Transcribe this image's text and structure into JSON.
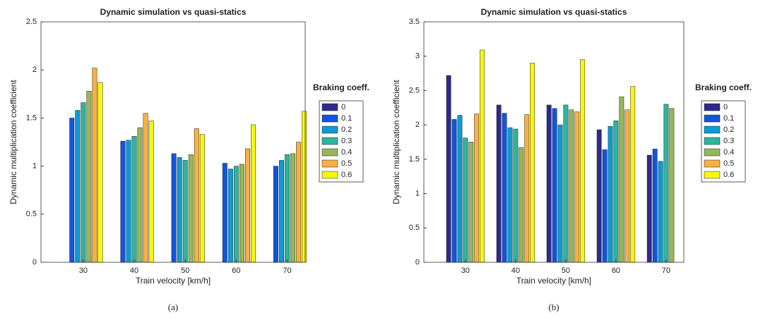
{
  "chart_data": [
    {
      "type": "bar",
      "title": "Dynamic simulation vs quasi-statics",
      "xlabel": "Train velocity [km/h]",
      "ylabel": "Dynamic multiplication coefficient",
      "caption": "(a)",
      "categories": [
        "30",
        "40",
        "50",
        "60",
        "70"
      ],
      "legend_title": "Braking coeff.",
      "ylim": [
        0,
        2.5
      ],
      "yticks": [
        0,
        0.5,
        1,
        1.5,
        2,
        2.5
      ],
      "series": [
        {
          "name": "0",
          "color": "#2e2a8c",
          "values": [
            0,
            0,
            0,
            0,
            0
          ]
        },
        {
          "name": "0.1",
          "color": "#1155dd",
          "values": [
            1.5,
            1.26,
            1.13,
            1.03,
            1.0
          ]
        },
        {
          "name": "0.2",
          "color": "#0d9ad3",
          "values": [
            1.58,
            1.27,
            1.09,
            0.97,
            1.06
          ]
        },
        {
          "name": "0.3",
          "color": "#2db59d",
          "values": [
            1.66,
            1.31,
            1.06,
            1.0,
            1.12
          ]
        },
        {
          "name": "0.4",
          "color": "#95b65a",
          "values": [
            1.78,
            1.4,
            1.12,
            1.02,
            1.13
          ]
        },
        {
          "name": "0.5",
          "color": "#f9b040",
          "values": [
            2.02,
            1.55,
            1.39,
            1.18,
            1.25
          ]
        },
        {
          "name": "0.6",
          "color": "#f6f610",
          "values": [
            1.87,
            1.47,
            1.33,
            1.43,
            1.57
          ]
        }
      ]
    },
    {
      "type": "bar",
      "title": "Dynamic simulation vs quasi-statics",
      "xlabel": "Train velocity [km/h]",
      "ylabel": "Dynamic multiplication coefficient",
      "caption": "(b)",
      "categories": [
        "30",
        "40",
        "50",
        "60",
        "70"
      ],
      "legend_title": "Braking coeff.",
      "ylim": [
        0,
        3.5
      ],
      "yticks": [
        0,
        0.5,
        1,
        1.5,
        2,
        2.5,
        3,
        3.5
      ],
      "series": [
        {
          "name": "0",
          "color": "#2e2a8c",
          "values": [
            2.72,
            2.29,
            2.29,
            1.93,
            1.56
          ]
        },
        {
          "name": "0.1",
          "color": "#1155dd",
          "values": [
            2.08,
            2.17,
            2.24,
            1.64,
            1.65
          ]
        },
        {
          "name": "0.2",
          "color": "#0d9ad3",
          "values": [
            2.14,
            1.96,
            2.0,
            1.98,
            1.47
          ]
        },
        {
          "name": "0.3",
          "color": "#2db59d",
          "values": [
            1.81,
            1.94,
            2.29,
            2.06,
            2.3
          ]
        },
        {
          "name": "0.4",
          "color": "#95b65a",
          "values": [
            1.75,
            1.67,
            2.22,
            2.41,
            2.24
          ]
        },
        {
          "name": "0.5",
          "color": "#f9b040",
          "values": [
            2.16,
            2.15,
            2.19,
            2.22,
            0
          ]
        },
        {
          "name": "0.6",
          "color": "#f6f610",
          "values": [
            3.09,
            2.9,
            2.95,
            2.56,
            0
          ]
        }
      ]
    }
  ]
}
